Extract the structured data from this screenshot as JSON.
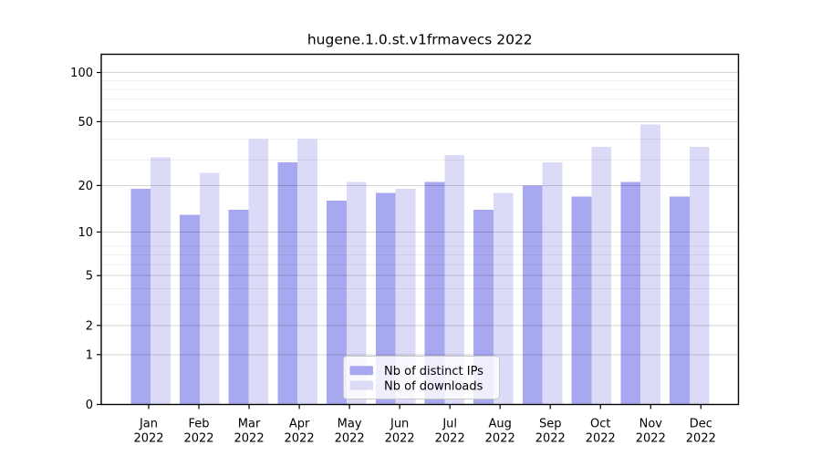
{
  "figure": {
    "background": "#ffffff"
  },
  "chart_data": {
    "type": "bar",
    "title": "hugene.1.0.st.v1frmavecs 2022",
    "categories": [
      "Jan",
      "Feb",
      "Mar",
      "Apr",
      "May",
      "Jun",
      "Jul",
      "Aug",
      "Sep",
      "Oct",
      "Nov",
      "Dec"
    ],
    "year": "2022",
    "series": [
      {
        "name": "Nb of distinct IPs",
        "color": "#a8a8f0",
        "values": [
          19,
          13,
          14,
          28,
          16,
          18,
          21,
          14,
          20,
          17,
          21,
          17
        ]
      },
      {
        "name": "Nb of downloads",
        "color": "#dbdbf8",
        "values": [
          30,
          24,
          39,
          39,
          21,
          19,
          31,
          18,
          28,
          35,
          48,
          35
        ]
      }
    ],
    "xlabel": "",
    "ylabel": "",
    "yscale": "log1p",
    "yticks": [
      0,
      1,
      2,
      5,
      10,
      20,
      50,
      100
    ],
    "ylim": [
      0,
      125
    ],
    "grid": true,
    "legend_position": "inside-lower-center",
    "colors": {
      "axis": "#000000",
      "grid_major": "rgba(0,0,0,0.17)",
      "grid_minor": "rgba(0,0,0,0.06)",
      "legend_border": "#c8c8c8",
      "legend_fill": "rgba(255,255,255,0.8)",
      "text": "#000000"
    }
  }
}
